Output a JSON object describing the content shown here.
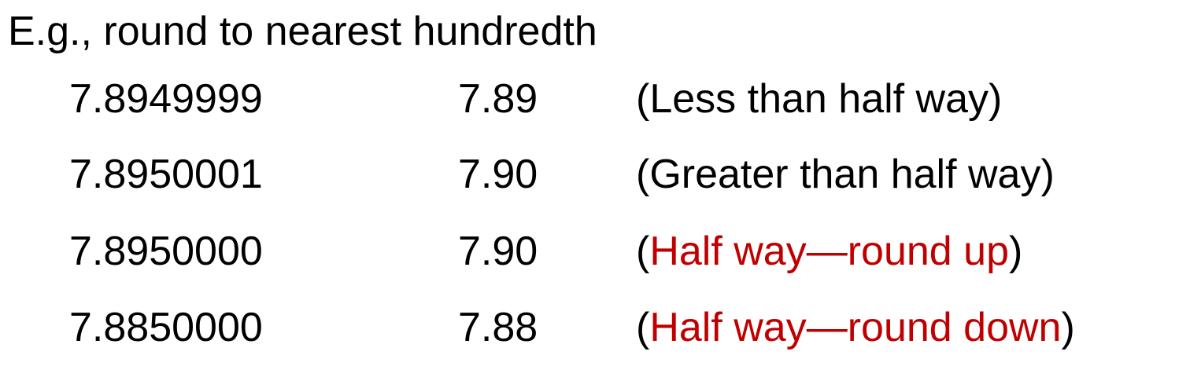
{
  "heading": "E.g., round to nearest hundredth",
  "accent_color": "#c00000",
  "rows": [
    {
      "original": "7.8949999",
      "rounded": "7.89",
      "note_open": "(",
      "note": "Less than half way",
      "note_close": ")",
      "highlight": false
    },
    {
      "original": "7.8950001",
      "rounded": "7.90",
      "note_open": "(",
      "note": "Greater than half way",
      "note_close": ")",
      "highlight": false
    },
    {
      "original": "7.8950000",
      "rounded": "7.90",
      "note_open": "(",
      "note": "Half way—round up",
      "note_close": ")",
      "highlight": true
    },
    {
      "original": "7.8850000",
      "rounded": "7.88",
      "note_open": "(",
      "note": "Half way—round down",
      "note_close": ")",
      "highlight": true
    }
  ]
}
